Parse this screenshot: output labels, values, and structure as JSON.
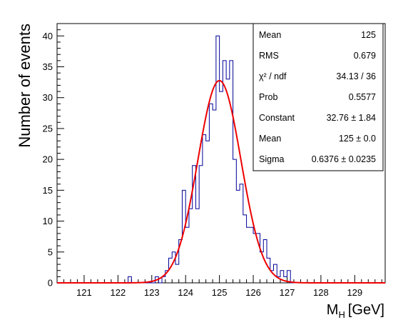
{
  "chart_data": {
    "type": "histogram",
    "xlabel": "M",
    "xlabel_sub": "H",
    "xlabel_unit": "[GeV]",
    "ylabel": "Number of events",
    "xlim": [
      120.2,
      129.9
    ],
    "ylim": [
      0,
      42
    ],
    "bin_width": 0.1,
    "xticks": [
      121,
      122,
      123,
      124,
      125,
      126,
      127,
      128,
      129
    ],
    "yticks": [
      0,
      5,
      10,
      15,
      20,
      25,
      30,
      35,
      40
    ],
    "grid": false,
    "histogram": {
      "color": "#000099",
      "bins": [
        {
          "lo": 122.3,
          "y": 1
        },
        {
          "lo": 123.1,
          "y": 1
        },
        {
          "lo": 123.3,
          "y": 1
        },
        {
          "lo": 123.4,
          "y": 2
        },
        {
          "lo": 123.5,
          "y": 4
        },
        {
          "lo": 123.6,
          "y": 5
        },
        {
          "lo": 123.7,
          "y": 3
        },
        {
          "lo": 123.8,
          "y": 7
        },
        {
          "lo": 123.9,
          "y": 15
        },
        {
          "lo": 124.0,
          "y": 9
        },
        {
          "lo": 124.1,
          "y": 12
        },
        {
          "lo": 124.2,
          "y": 19
        },
        {
          "lo": 124.3,
          "y": 12
        },
        {
          "lo": 124.4,
          "y": 19
        },
        {
          "lo": 124.5,
          "y": 24
        },
        {
          "lo": 124.6,
          "y": 23
        },
        {
          "lo": 124.7,
          "y": 29
        },
        {
          "lo": 124.8,
          "y": 28
        },
        {
          "lo": 124.9,
          "y": 40
        },
        {
          "lo": 125.0,
          "y": 31
        },
        {
          "lo": 125.1,
          "y": 36
        },
        {
          "lo": 125.2,
          "y": 33
        },
        {
          "lo": 125.3,
          "y": 36
        },
        {
          "lo": 125.4,
          "y": 20
        },
        {
          "lo": 125.5,
          "y": 15
        },
        {
          "lo": 125.6,
          "y": 16
        },
        {
          "lo": 125.7,
          "y": 11
        },
        {
          "lo": 125.8,
          "y": 9
        },
        {
          "lo": 125.9,
          "y": 9
        },
        {
          "lo": 126.0,
          "y": 8
        },
        {
          "lo": 126.1,
          "y": 8
        },
        {
          "lo": 126.2,
          "y": 5
        },
        {
          "lo": 126.3,
          "y": 7
        },
        {
          "lo": 126.4,
          "y": 4
        },
        {
          "lo": 126.5,
          "y": 2
        },
        {
          "lo": 126.6,
          "y": 3
        },
        {
          "lo": 126.7,
          "y": 1
        },
        {
          "lo": 126.8,
          "y": 2
        },
        {
          "lo": 126.9,
          "y": 1
        },
        {
          "lo": 127.0,
          "y": 2
        }
      ]
    },
    "fit": {
      "function": "gaus",
      "color": "#ee0000",
      "constant": 32.76,
      "mean": 125.0,
      "sigma": 0.6376
    },
    "stats_box": {
      "position": "top-right",
      "rows": [
        {
          "label": "Mean",
          "value": "125"
        },
        {
          "label": "RMS",
          "value": "0.679"
        },
        {
          "label": "χ² / ndf",
          "value": "34.13 / 36"
        },
        {
          "label": "Prob",
          "value": "0.5577"
        },
        {
          "label": "Constant",
          "value": "32.76 ± 1.84"
        },
        {
          "label": "Mean",
          "value": "125 ± 0.0"
        },
        {
          "label": "Sigma",
          "value": "0.6376 ± 0.0235"
        }
      ]
    }
  }
}
